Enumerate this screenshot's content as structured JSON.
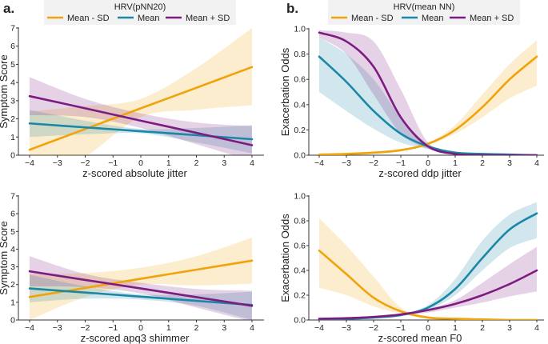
{
  "colors": {
    "mean_minus_sd": "#f0a30a",
    "mean": "#1b87a6",
    "mean_plus_sd": "#7d1c80",
    "legend_bg": "#f2f2f2"
  },
  "panel_labels": [
    "a.",
    "b."
  ],
  "chart_data": [
    {
      "type": "line",
      "panel": "a",
      "legend": {
        "title": "HRV(pNN20)",
        "placement": "top",
        "entries": [
          "Mean - SD",
          "Mean",
          "Mean + SD"
        ]
      },
      "xlabel": "z-scored absolute jitter",
      "ylabel": "Symptom Score",
      "xlim": [
        -4,
        4
      ],
      "ylim": [
        0,
        7
      ],
      "xticks": [
        "−4",
        "−3",
        "−2",
        "−1",
        "0",
        "1",
        "2",
        "3",
        "4"
      ],
      "yticks": [
        "0",
        "1",
        "2",
        "3",
        "4",
        "5",
        "6",
        "7"
      ],
      "x": [
        -4,
        -2,
        0,
        2,
        4
      ],
      "series": [
        {
          "name": "Mean - SD",
          "values": [
            0.3,
            1.44,
            2.58,
            3.71,
            4.85
          ],
          "lower": [
            -1.8,
            -0.1,
            2.1,
            2.5,
            2.75
          ],
          "upper": [
            2.4,
            2.7,
            3.1,
            4.8,
            7.0
          ]
        },
        {
          "name": "Mean",
          "values": [
            1.75,
            1.53,
            1.32,
            1.1,
            0.88
          ],
          "lower": [
            1.0,
            1.15,
            1.2,
            0.7,
            0.1
          ],
          "upper": [
            2.5,
            1.9,
            1.45,
            1.5,
            1.65
          ]
        },
        {
          "name": "Mean + SD",
          "values": [
            3.25,
            2.58,
            1.9,
            1.23,
            0.55
          ],
          "lower": [
            2.2,
            2.1,
            1.5,
            0.6,
            -0.3
          ],
          "upper": [
            4.3,
            3.1,
            2.3,
            1.8,
            1.6
          ]
        }
      ]
    },
    {
      "type": "line",
      "panel": "b",
      "legend": {
        "title": "HRV(mean NN)",
        "placement": "top",
        "entries": [
          "Mean - SD",
          "Mean",
          "Mean + SD"
        ]
      },
      "xlabel": "z-scored ddp jitter",
      "ylabel": "Exacerbation Odds",
      "xlim": [
        -4,
        4
      ],
      "ylim": [
        0,
        1
      ],
      "xticks": [
        "−4",
        "−3",
        "−2",
        "−1",
        "0",
        "1",
        "2",
        "3",
        "4"
      ],
      "yticks": [
        "0.0",
        "0.2",
        "0.4",
        "0.6",
        "0.8",
        "1.0"
      ],
      "x": [
        -4,
        -3,
        -2,
        -1,
        0,
        1,
        2,
        3,
        4
      ],
      "series": [
        {
          "name": "Mean - SD",
          "values": [
            0.005,
            0.01,
            0.02,
            0.04,
            0.09,
            0.2,
            0.38,
            0.6,
            0.78
          ],
          "lower": [
            0,
            0,
            0.01,
            0.03,
            0.08,
            0.17,
            0.3,
            0.45,
            0.55
          ],
          "upper": [
            0.01,
            0.02,
            0.03,
            0.05,
            0.1,
            0.24,
            0.48,
            0.72,
            0.91
          ]
        },
        {
          "name": "Mean",
          "values": [
            0.78,
            0.58,
            0.35,
            0.17,
            0.07,
            0.02,
            0.01,
            0.005,
            0
          ],
          "lower": [
            0.5,
            0.35,
            0.21,
            0.1,
            0.05,
            0.01,
            0,
            0,
            0
          ],
          "upper": [
            0.93,
            0.8,
            0.6,
            0.3,
            0.09,
            0.03,
            0.01,
            0.005,
            0
          ]
        },
        {
          "name": "Mean + SD",
          "values": [
            0.97,
            0.9,
            0.7,
            0.3,
            0.07,
            0.01,
            0,
            0,
            0
          ],
          "lower": [
            0.93,
            0.8,
            0.48,
            0.17,
            0.05,
            0.005,
            0,
            0,
            0
          ],
          "upper": [
            0.99,
            0.97,
            0.9,
            0.52,
            0.1,
            0.02,
            0.005,
            0,
            0
          ]
        }
      ]
    },
    {
      "type": "line",
      "panel": "a",
      "xlabel": "z-scored apq3 shimmer",
      "ylabel": "Symptom Score",
      "xlim": [
        -4,
        4
      ],
      "ylim": [
        0,
        7
      ],
      "xticks": [
        "−4",
        "−3",
        "−2",
        "−1",
        "0",
        "1",
        "2",
        "3",
        "4"
      ],
      "yticks": [
        "0",
        "1",
        "2",
        "3",
        "4",
        "5",
        "6",
        "7"
      ],
      "x": [
        -4,
        -2,
        0,
        2,
        4
      ],
      "series": [
        {
          "name": "Mean - SD",
          "values": [
            1.3,
            1.81,
            2.33,
            2.84,
            3.35
          ],
          "lower": [
            0,
            1.3,
            2.0,
            1.95,
            2.05
          ],
          "upper": [
            2.6,
            2.65,
            2.95,
            3.6,
            4.65
          ]
        },
        {
          "name": "Mean",
          "values": [
            1.78,
            1.55,
            1.32,
            1.08,
            0.85
          ],
          "lower": [
            1.0,
            1.2,
            1.15,
            0.8,
            0.0
          ],
          "upper": [
            2.55,
            1.9,
            1.45,
            1.45,
            1.6
          ]
        },
        {
          "name": "Mean + SD",
          "values": [
            2.75,
            2.26,
            1.78,
            1.29,
            0.8
          ],
          "lower": [
            1.9,
            1.85,
            1.5,
            0.7,
            -0.1
          ],
          "upper": [
            3.6,
            2.6,
            2.1,
            1.75,
            1.65
          ]
        }
      ]
    },
    {
      "type": "line",
      "panel": "b",
      "xlabel": "z-scored mean F0",
      "ylabel": "Exacerbation Odds",
      "xlim": [
        -4,
        4
      ],
      "ylim": [
        0,
        1
      ],
      "xticks": [
        "−4",
        "−3",
        "−2",
        "−1",
        "0",
        "1",
        "2",
        "3",
        "4"
      ],
      "yticks": [
        "0.0",
        "0.2",
        "0.4",
        "0.6",
        "0.8",
        "1.0"
      ],
      "x": [
        -4,
        -3,
        -2,
        -1,
        0,
        1,
        2,
        3,
        4
      ],
      "series": [
        {
          "name": "Mean - SD",
          "values": [
            0.56,
            0.37,
            0.18,
            0.07,
            0.02,
            0.01,
            0.005,
            0,
            0
          ],
          "lower": [
            0.26,
            0.2,
            0.11,
            0.05,
            0.01,
            0,
            0,
            0,
            0
          ],
          "upper": [
            0.82,
            0.6,
            0.35,
            0.1,
            0.03,
            0.01,
            0.005,
            0,
            0
          ]
        },
        {
          "name": "Mean",
          "values": [
            0.005,
            0.01,
            0.02,
            0.04,
            0.1,
            0.25,
            0.5,
            0.73,
            0.86
          ],
          "lower": [
            0,
            0.005,
            0.015,
            0.03,
            0.08,
            0.2,
            0.4,
            0.58,
            0.66
          ],
          "upper": [
            0.01,
            0.015,
            0.03,
            0.05,
            0.12,
            0.33,
            0.64,
            0.85,
            0.95
          ]
        },
        {
          "name": "Mean + SD",
          "values": [
            0.01,
            0.015,
            0.025,
            0.045,
            0.08,
            0.13,
            0.2,
            0.29,
            0.4
          ],
          "lower": [
            0.005,
            0.01,
            0.02,
            0.04,
            0.06,
            0.1,
            0.14,
            0.19,
            0.23
          ],
          "upper": [
            0.015,
            0.02,
            0.03,
            0.05,
            0.09,
            0.16,
            0.3,
            0.45,
            0.59
          ]
        }
      ]
    }
  ]
}
